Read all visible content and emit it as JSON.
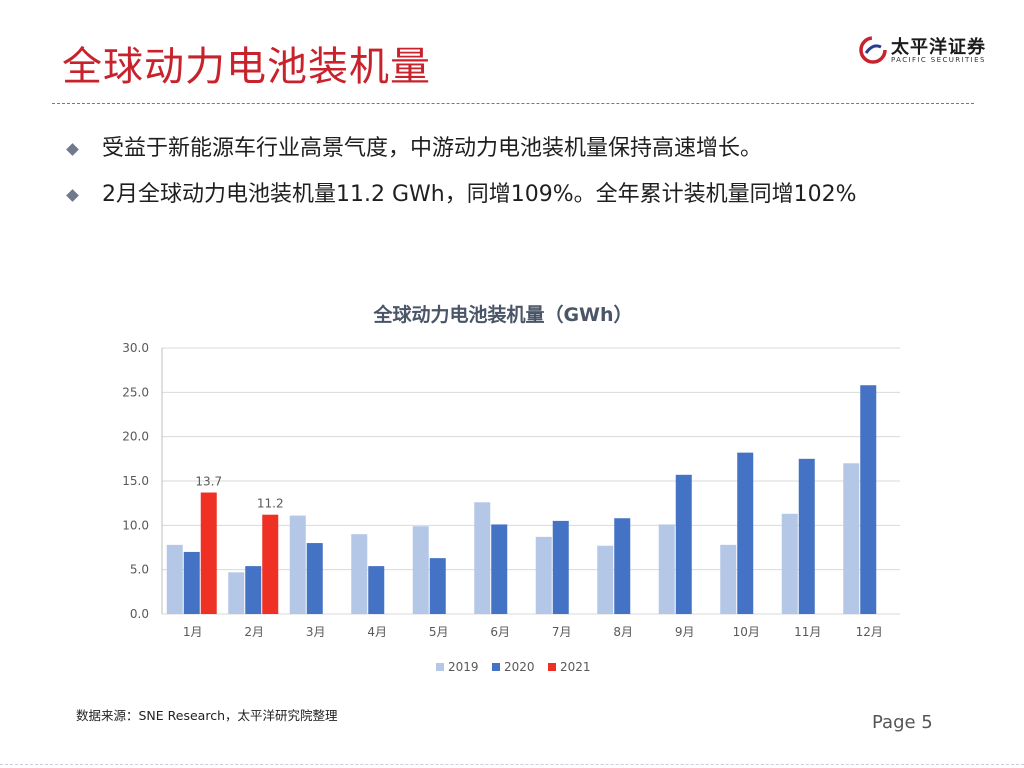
{
  "slide": {
    "title": "全球动力电池装机量",
    "bullets": [
      "受益于新能源车行业高景气度，中游动力电池装机量保持高速增长。",
      "2月全球动力电池装机量11.2 GWh，同增109%。全年累计装机量同增102%"
    ],
    "source": "数据来源：SNE Research，太平洋研究院整理",
    "page": "Page 5"
  },
  "logo": {
    "name_cn": "太平洋证券",
    "name_en": "PACIFIC SECURITIES"
  },
  "colors": {
    "title": "#c8232c",
    "s2019": "#b4c7e7",
    "s2020": "#4472c4",
    "s2021": "#ee3124"
  },
  "chart_data": {
    "type": "bar",
    "title": "全球动力电池装机量（GWh）",
    "categories": [
      "1月",
      "2月",
      "3月",
      "4月",
      "5月",
      "6月",
      "7月",
      "8月",
      "9月",
      "10月",
      "11月",
      "12月"
    ],
    "series": [
      {
        "name": "2019",
        "values": [
          7.8,
          4.7,
          11.1,
          9.0,
          9.9,
          12.6,
          8.7,
          7.7,
          10.1,
          7.8,
          11.3,
          17.0
        ]
      },
      {
        "name": "2020",
        "values": [
          7.0,
          5.4,
          8.0,
          5.4,
          6.3,
          10.1,
          10.5,
          10.8,
          15.7,
          18.2,
          17.5,
          25.8
        ]
      },
      {
        "name": "2021",
        "values": [
          13.7,
          11.2,
          null,
          null,
          null,
          null,
          null,
          null,
          null,
          null,
          null,
          null
        ]
      }
    ],
    "data_labels": [
      "13.7",
      "11.2"
    ],
    "yticks": [
      "0.0",
      "5.0",
      "10.0",
      "15.0",
      "20.0",
      "25.0",
      "30.0"
    ],
    "ylim": [
      0,
      30
    ],
    "grid": true,
    "legend": "bottom"
  }
}
